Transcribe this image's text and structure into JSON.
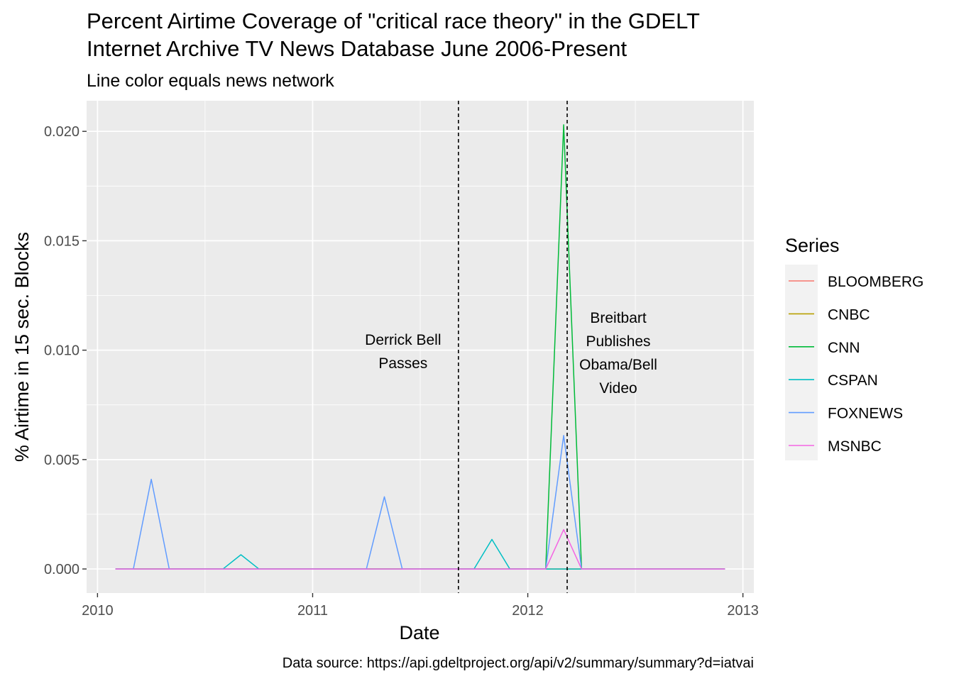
{
  "chart_data": {
    "type": "line",
    "title_lines": [
      "Percent Airtime Coverage of \"critical race theory\" in the GDELT",
      "Internet Archive TV News Database June 2006-Present"
    ],
    "subtitle": "Line color equals news network",
    "xlabel": "Date",
    "ylabel": "% Airtime in 15 sec. Blocks",
    "caption": "Data source: https://api.gdeltproject.org/api/v2/summary/summary?d=iatvai",
    "xlim": [
      "2010-01",
      "2013-01"
    ],
    "ylim": [
      -0.0011,
      0.0214
    ],
    "x_ticks": [
      {
        "value": "2010-01",
        "label": "2010"
      },
      {
        "value": "2011-01",
        "label": "2011"
      },
      {
        "value": "2012-01",
        "label": "2012"
      },
      {
        "value": "2013-01",
        "label": "2013"
      }
    ],
    "y_ticks": [
      {
        "value": 0.0,
        "label": "0.000"
      },
      {
        "value": 0.005,
        "label": "0.005"
      },
      {
        "value": 0.01,
        "label": "0.010"
      },
      {
        "value": 0.015,
        "label": "0.015"
      },
      {
        "value": 0.02,
        "label": "0.020"
      }
    ],
    "grid": true,
    "legend": {
      "title": "Series",
      "position": "right",
      "entries": [
        "BLOOMBERG",
        "CNBC",
        "CNN",
        "CSPAN",
        "FOXNEWS",
        "MSNBC"
      ]
    },
    "x": [
      "2010-02",
      "2010-03",
      "2010-04",
      "2010-05",
      "2010-06",
      "2010-07",
      "2010-08",
      "2010-09",
      "2010-10",
      "2010-11",
      "2010-12",
      "2011-01",
      "2011-02",
      "2011-03",
      "2011-04",
      "2011-05",
      "2011-06",
      "2011-07",
      "2011-08",
      "2011-09",
      "2011-10",
      "2011-11",
      "2011-12",
      "2012-01",
      "2012-02",
      "2012-03",
      "2012-04",
      "2012-05",
      "2012-06",
      "2012-07",
      "2012-08",
      "2012-09",
      "2012-10",
      "2012-11",
      "2012-12"
    ],
    "series": [
      {
        "name": "BLOOMBERG",
        "color": "#F8766D",
        "values": [
          0,
          0,
          0,
          0,
          0,
          0,
          0,
          0,
          0,
          0,
          0,
          0,
          0,
          0,
          0,
          0,
          0,
          0,
          0,
          0,
          0,
          0,
          0,
          0,
          0,
          0,
          0,
          0,
          0,
          0,
          0,
          0,
          0,
          0,
          0
        ]
      },
      {
        "name": "CNBC",
        "color": "#B79F00",
        "values": [
          0,
          0,
          0,
          0,
          0,
          0,
          0,
          0,
          0,
          0,
          0,
          0,
          0,
          0,
          0,
          0,
          0,
          0,
          0,
          0,
          0,
          0,
          0,
          0,
          0,
          0,
          0,
          0,
          0,
          0,
          0,
          0,
          0,
          0,
          0
        ]
      },
      {
        "name": "CNN",
        "color": "#00BA38",
        "values": [
          0,
          0,
          0,
          0,
          0,
          0,
          0,
          0,
          0,
          0,
          0,
          0,
          0,
          0,
          0,
          0,
          0,
          0,
          0,
          0,
          0,
          0,
          0,
          0,
          0,
          0.0203,
          0,
          0,
          0,
          0,
          0,
          0,
          0,
          0,
          0
        ]
      },
      {
        "name": "CSPAN",
        "color": "#00BFC4",
        "values": [
          0,
          0,
          0,
          0,
          0,
          0,
          0,
          0.00065,
          0,
          0,
          0,
          0,
          0,
          0,
          0,
          0,
          0,
          0,
          0,
          0,
          0,
          0.00135,
          0,
          0,
          0,
          0,
          0,
          0,
          0,
          0,
          0,
          0,
          0,
          0,
          0
        ]
      },
      {
        "name": "FOXNEWS",
        "color": "#619CFF",
        "values": [
          0,
          0,
          0.0041,
          0,
          0,
          0,
          0,
          0,
          0,
          0,
          0,
          0,
          0,
          0,
          0,
          0.0033,
          0,
          0,
          0,
          0,
          0,
          0,
          0,
          0,
          0,
          0.0061,
          0,
          0,
          0,
          0,
          0,
          0,
          0,
          0,
          0
        ]
      },
      {
        "name": "MSNBC",
        "color": "#F564E3",
        "values": [
          0,
          0,
          0,
          0,
          0,
          0,
          0,
          0,
          0,
          0,
          0,
          0,
          0,
          0,
          0,
          0,
          0,
          0,
          0,
          0,
          0,
          0,
          0,
          0,
          0,
          0.0018,
          0,
          0,
          0,
          0,
          0,
          0,
          0,
          0,
          0
        ]
      }
    ],
    "vlines": [
      {
        "x": "2011-09-05",
        "label_lines": [
          "Derrick Bell",
          "Passes"
        ]
      },
      {
        "x": "2012-03-07",
        "label_lines": [
          "Breitbart",
          "Publishes",
          "Obama/Bell",
          "Video"
        ]
      }
    ]
  }
}
